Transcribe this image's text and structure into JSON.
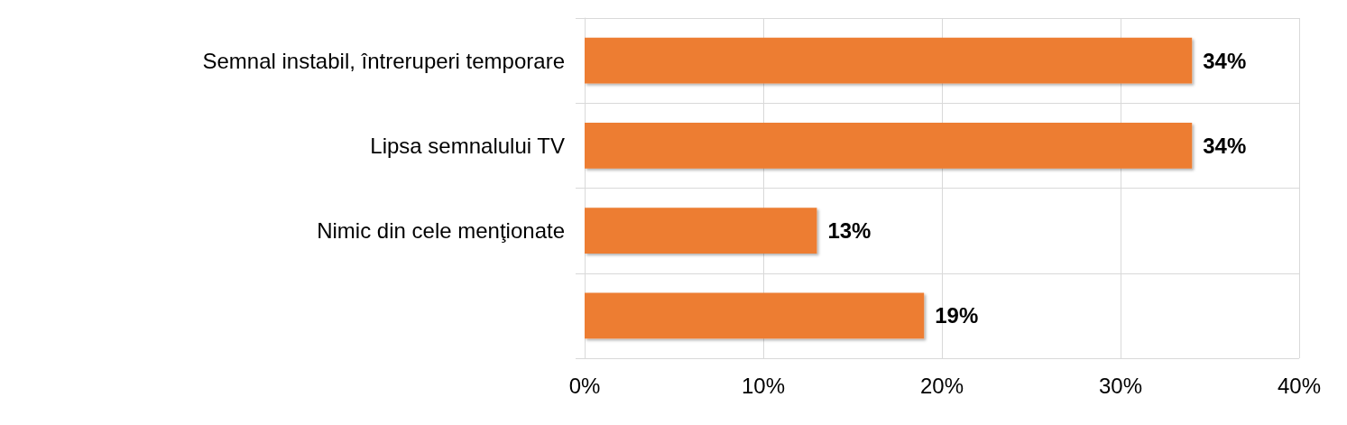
{
  "chart_data": {
    "type": "bar",
    "orientation": "horizontal",
    "categories": [
      "Semnal instabil, întreruperi temporare",
      "Lipsa semnalului TV",
      "Nimic din cele menţionate",
      null
    ],
    "values": [
      34,
      34,
      13,
      19
    ],
    "value_labels": [
      "34%",
      "34%",
      "13%",
      "19%"
    ],
    "color": "#ed7d31",
    "xlim": [
      0,
      40
    ],
    "xticks": [
      {
        "value": 0,
        "label": "0%"
      },
      {
        "value": 10,
        "label": "10%"
      },
      {
        "value": 20,
        "label": "20%"
      },
      {
        "value": 30,
        "label": "30%"
      },
      {
        "value": 40,
        "label": "40%"
      }
    ],
    "grid": true
  }
}
